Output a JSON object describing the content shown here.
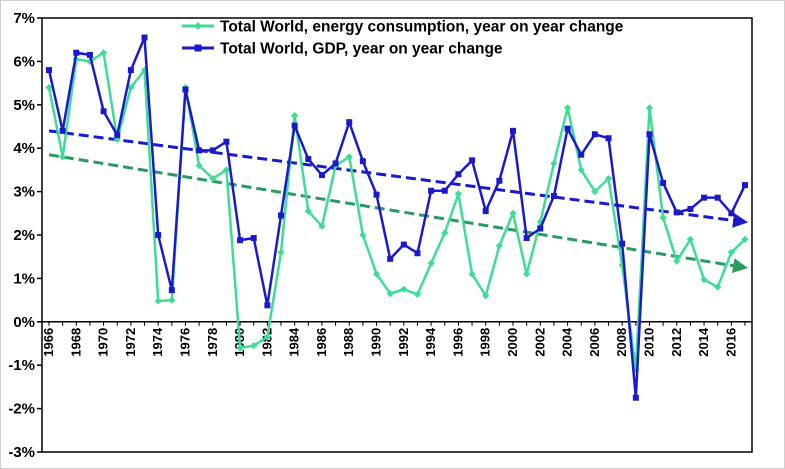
{
  "chart_data": {
    "type": "line",
    "title": "",
    "xlabel": "",
    "ylabel": "",
    "x": [
      1966,
      1967,
      1968,
      1969,
      1970,
      1971,
      1972,
      1973,
      1974,
      1975,
      1976,
      1977,
      1978,
      1979,
      1980,
      1981,
      1982,
      1983,
      1984,
      1985,
      1986,
      1987,
      1988,
      1989,
      1990,
      1991,
      1992,
      1993,
      1994,
      1995,
      1996,
      1997,
      1998,
      1999,
      2000,
      2001,
      2002,
      2003,
      2004,
      2005,
      2006,
      2007,
      2008,
      2009,
      2010,
      2011,
      2012,
      2013,
      2014,
      2015,
      2016,
      2017
    ],
    "x_tick_labels": [
      "1966",
      "1968",
      "1970",
      "1972",
      "1974",
      "1976",
      "1978",
      "1980",
      "1982",
      "1984",
      "1986",
      "1988",
      "1990",
      "1992",
      "1994",
      "1996",
      "1998",
      "2000",
      "2002",
      "2004",
      "2006",
      "2008",
      "2010",
      "2012",
      "2014",
      "2016"
    ],
    "y_tick_labels": [
      "7%",
      "6%",
      "5%",
      "4%",
      "3%",
      "2%",
      "1%",
      "0%",
      "-1%",
      "-2%",
      "-3%"
    ],
    "ylim": [
      -3,
      7
    ],
    "grid": false,
    "legend_position": "top-center",
    "series": [
      {
        "name": "Total World, energy consumption, year on year change",
        "color": "#3ddc97",
        "marker": "diamond",
        "values": [
          5.4,
          3.8,
          6.05,
          6.0,
          6.2,
          4.2,
          5.4,
          5.8,
          0.48,
          0.5,
          5.4,
          3.6,
          3.3,
          3.5,
          -0.6,
          -0.55,
          -0.35,
          1.6,
          4.75,
          2.55,
          2.2,
          3.6,
          3.8,
          2.0,
          1.1,
          0.65,
          0.75,
          0.63,
          1.35,
          2.05,
          2.95,
          1.1,
          0.6,
          1.75,
          2.5,
          1.1,
          2.3,
          3.65,
          4.93,
          3.5,
          3.0,
          3.3,
          1.3,
          -1.1,
          4.93,
          2.4,
          1.4,
          1.9,
          0.97,
          0.8,
          1.6,
          1.9
        ]
      },
      {
        "name": "Total World, GDP, year on year change",
        "color": "#1a1acc",
        "marker": "square",
        "values": [
          5.8,
          4.4,
          6.2,
          6.15,
          4.85,
          4.3,
          5.8,
          6.55,
          2.0,
          0.73,
          5.35,
          3.95,
          3.95,
          4.15,
          1.88,
          1.93,
          0.38,
          2.45,
          4.52,
          3.75,
          3.38,
          3.65,
          4.6,
          3.7,
          2.93,
          1.45,
          1.78,
          1.58,
          3.02,
          3.02,
          3.4,
          3.72,
          2.55,
          3.25,
          4.4,
          1.93,
          2.15,
          2.9,
          4.45,
          3.85,
          4.32,
          4.23,
          1.8,
          -1.75,
          4.32,
          3.2,
          2.52,
          2.6,
          2.86,
          2.86,
          2.5,
          3.15
        ]
      }
    ],
    "trend_lines": [
      {
        "series": "Total World, GDP, year on year change",
        "color": "#1a1acc",
        "start": [
          1966,
          4.4
        ],
        "end": [
          2017,
          2.3
        ]
      },
      {
        "series": "Total World, energy consumption, year on year change",
        "color": "#2a9a5e",
        "start": [
          1966,
          3.85
        ],
        "end": [
          2017,
          1.25
        ]
      }
    ]
  }
}
